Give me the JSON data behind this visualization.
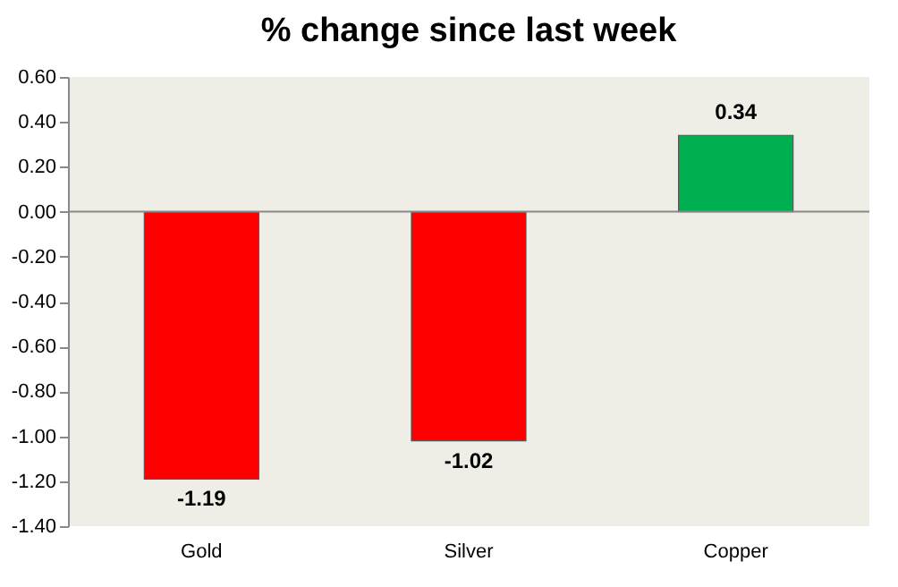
{
  "chart_data": {
    "type": "bar",
    "title": "% change since last week",
    "categories": [
      "Gold",
      "Silver",
      "Copper"
    ],
    "values": [
      -1.19,
      -1.02,
      0.34
    ],
    "colors": [
      "#ff0000",
      "#ff0000",
      "#00b050"
    ],
    "ylim": [
      -1.4,
      0.6
    ],
    "yticks": [
      {
        "value": 0.6,
        "label": "0.60"
      },
      {
        "value": 0.4,
        "label": "0.40"
      },
      {
        "value": 0.2,
        "label": "0.20"
      },
      {
        "value": 0,
        "label": "0.00"
      },
      {
        "value": -0.2,
        "label": "-0.20"
      },
      {
        "value": -0.4,
        "label": "-0.40"
      },
      {
        "value": -0.6,
        "label": "-0.60"
      },
      {
        "value": -0.8,
        "label": "-0.80"
      },
      {
        "value": -1.0,
        "label": "-1.00"
      },
      {
        "value": -1.2,
        "label": "-1.20"
      },
      {
        "value": -1.4,
        "label": "-1.40"
      }
    ],
    "ref_lines": [
      {
        "axis": "y",
        "value": 0,
        "color": "#888888"
      }
    ],
    "data_labels": true,
    "grid": false
  }
}
